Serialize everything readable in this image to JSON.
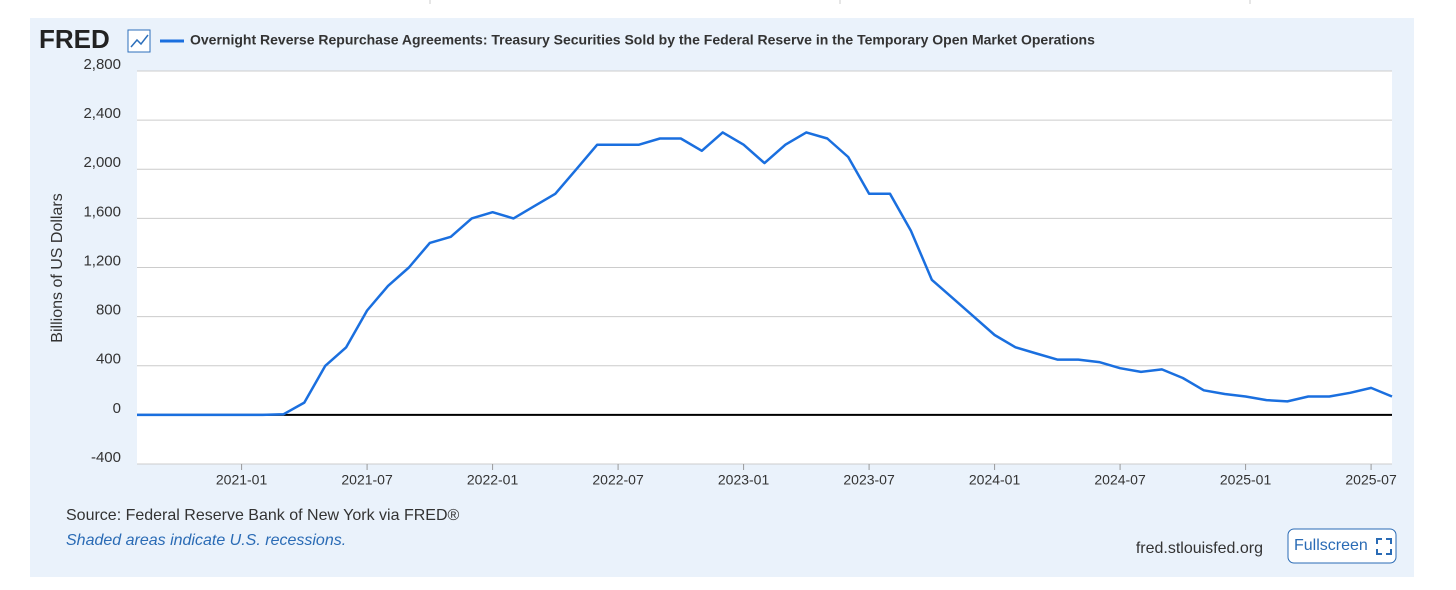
{
  "logo": "FRED",
  "source": "Source: Federal Reserve Bank of New York via FRED®",
  "note": "Shaded areas indicate U.S. recessions.",
  "site": "fred.stlouisfed.org",
  "button": "Fullscreen",
  "chart_data": {
    "type": "line",
    "ylabel": "Billions of US Dollars",
    "x": [
      "2020-08",
      "2020-09",
      "2020-10",
      "2020-11",
      "2020-12",
      "2021-01",
      "2021-02",
      "2021-03",
      "2021-04",
      "2021-05",
      "2021-06",
      "2021-07",
      "2021-08",
      "2021-09",
      "2021-10",
      "2021-11",
      "2021-12",
      "2022-01",
      "2022-02",
      "2022-03",
      "2022-04",
      "2022-05",
      "2022-06",
      "2022-07",
      "2022-08",
      "2022-09",
      "2022-10",
      "2022-11",
      "2022-12",
      "2023-01",
      "2023-02",
      "2023-03",
      "2023-04",
      "2023-05",
      "2023-06",
      "2023-07",
      "2023-08",
      "2023-09",
      "2023-10",
      "2023-11",
      "2023-12",
      "2024-01",
      "2024-02",
      "2024-03",
      "2024-04",
      "2024-05",
      "2024-06",
      "2024-07",
      "2024-08",
      "2024-09",
      "2024-10",
      "2024-11",
      "2024-12",
      "2025-01",
      "2025-02",
      "2025-03",
      "2025-04",
      "2025-05",
      "2025-06",
      "2025-07",
      "2025-08"
    ],
    "series": [
      {
        "name": "Overnight Reverse Repurchase Agreements: Treasury Securities Sold by the Federal Reserve in the Temporary Open Market Operations",
        "color": "#1a6fdf",
        "values": [
          0,
          0,
          0,
          0,
          0,
          0,
          0,
          5,
          100,
          400,
          550,
          850,
          1050,
          1200,
          1400,
          1450,
          1600,
          1650,
          1600,
          1700,
          1800,
          2000,
          2200,
          2200,
          2200,
          2250,
          2250,
          2150,
          2300,
          2200,
          2050,
          2200,
          2300,
          2250,
          2100,
          1800,
          1800,
          1500,
          1100,
          950,
          800,
          650,
          550,
          500,
          450,
          450,
          430,
          380,
          350,
          370,
          300,
          200,
          170,
          150,
          120,
          110,
          150,
          150,
          180,
          220,
          150
        ]
      }
    ],
    "xlim": [
      "2020-08",
      "2025-08"
    ],
    "xticks": [
      "2021-01",
      "2021-07",
      "2022-01",
      "2022-07",
      "2023-01",
      "2023-07",
      "2024-01",
      "2024-07",
      "2025-01",
      "2025-07"
    ],
    "ylim": [
      -400,
      2800
    ],
    "yticks": [
      -400,
      0,
      400,
      {
        "value": 800,
        "label": "800"
      },
      {
        "value": 1200,
        "label": "1,200"
      },
      {
        "value": 1600,
        "label": "1,600"
      },
      {
        "value": 2000,
        "label": "2,000"
      },
      {
        "value": 2400,
        "label": "2,400"
      },
      {
        "value": 2800,
        "label": "2,800"
      }
    ],
    "grid": true
  }
}
